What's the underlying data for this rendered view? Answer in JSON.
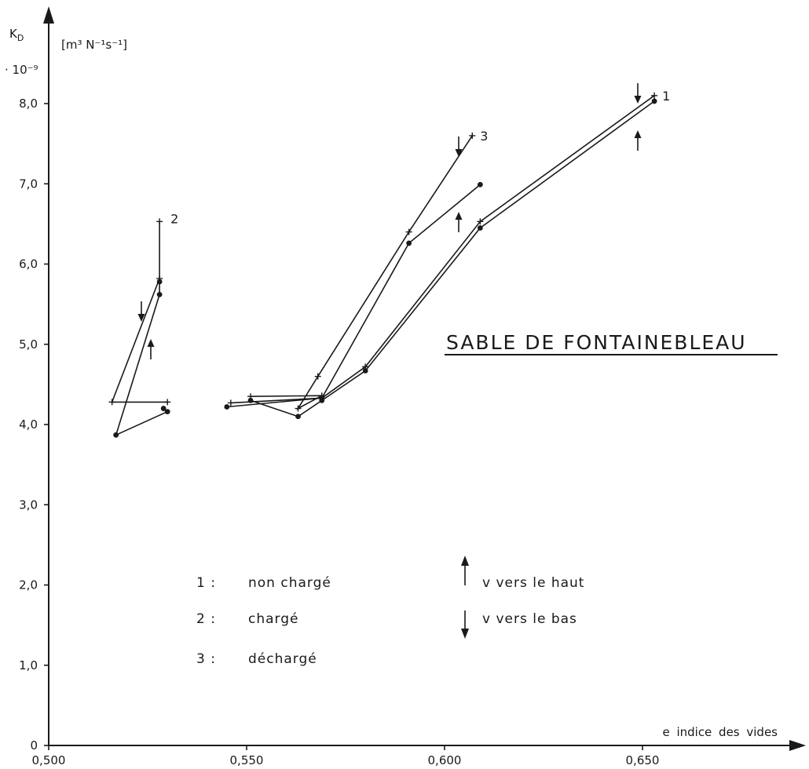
{
  "chart_data": {
    "type": "line",
    "title": "SABLE DE FONTAINEBLEAU",
    "xlabel": "e   indice des vides",
    "ylabel": "K",
    "ylabel_sub": "D",
    "units": "[m³ N⁻¹s⁻¹]",
    "multiplier": "· 10⁻⁹",
    "xlim": [
      0.5,
      0.65
    ],
    "ylim": [
      0,
      8.0
    ],
    "x_ticks": [
      0.5,
      0.55,
      0.6,
      0.65
    ],
    "x_tick_labels": [
      "0,500",
      "0,550",
      "0,600",
      "0,650"
    ],
    "y_ticks": [
      0,
      1,
      2,
      3,
      4,
      5,
      6,
      7,
      8
    ],
    "y_tick_labels": [
      "0",
      "1,0",
      "2,0",
      "3,0",
      "4,0",
      "5,0",
      "6,0",
      "7,0",
      "8,0"
    ],
    "series": [
      {
        "name": "1",
        "direction": "up",
        "marker": "dot",
        "x": [
          0.551,
          0.563,
          0.569,
          0.58,
          0.609,
          0.653
        ],
        "y": [
          4.3,
          4.1,
          4.3,
          4.67,
          6.45,
          8.03
        ]
      },
      {
        "name": "1",
        "direction": "down",
        "marker": "plus",
        "x": [
          0.546,
          0.569,
          0.58,
          0.609,
          0.653
        ],
        "y": [
          4.27,
          4.33,
          4.72,
          6.53,
          8.1
        ]
      },
      {
        "name": "2",
        "direction": "up",
        "marker": "dot",
        "x": [
          0.529,
          0.53,
          0.517,
          0.528,
          0.528
        ],
        "y": [
          4.2,
          4.16,
          3.87,
          5.62,
          5.78
        ]
      },
      {
        "name": "2",
        "direction": "down",
        "marker": "plus",
        "x": [
          0.528,
          0.528,
          0.516,
          0.53
        ],
        "y": [
          6.53,
          5.82,
          4.28,
          4.28
        ]
      },
      {
        "name": "3",
        "direction": "up",
        "marker": "dot",
        "x": [
          0.545,
          0.569,
          0.591,
          0.609
        ],
        "y": [
          4.22,
          4.33,
          6.26,
          6.99
        ]
      },
      {
        "name": "3",
        "direction": "down",
        "marker": "plus",
        "x": [
          0.551,
          0.569,
          0.563,
          0.568,
          0.591,
          0.607
        ],
        "y": [
          4.35,
          4.36,
          4.2,
          4.6,
          6.4,
          7.6
        ]
      }
    ],
    "legend": {
      "series": [
        {
          "key": "1 :",
          "label": "non chargé"
        },
        {
          "key": "2 :",
          "label": "chargé"
        },
        {
          "key": "3 :",
          "label": "déchargé"
        }
      ],
      "flow": [
        {
          "direction": "up",
          "label": "v  vers le haut"
        },
        {
          "direction": "down",
          "label": "v  vers le bas"
        }
      ]
    },
    "grid": false
  }
}
